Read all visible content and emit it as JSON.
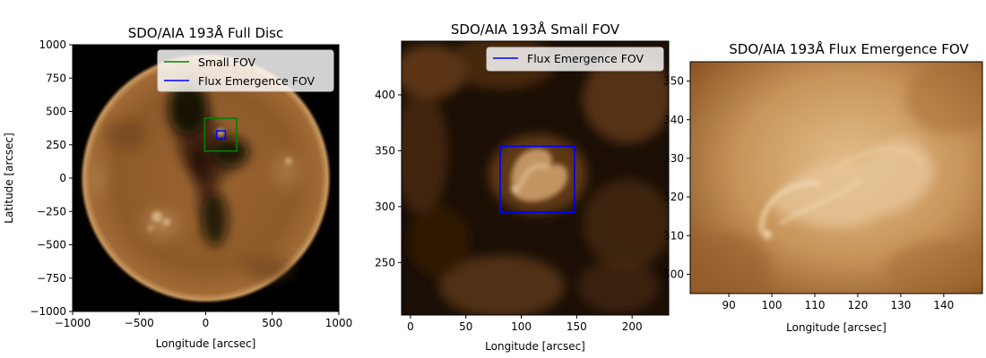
{
  "colors": {
    "small_fov": "#008000",
    "flux_fov": "#0000ff",
    "background": "#000000",
    "colormap": "sdoaia193"
  },
  "chart_data": [
    {
      "type": "heatmap",
      "id": "full",
      "title": "SDO/AIA 193Å Full Disc",
      "xlabel": "Longitude [arcsec]",
      "ylabel": "Latitude [arcsec]",
      "xlim": [
        -1000,
        1000
      ],
      "ylim": [
        -1000,
        1000
      ],
      "xticks": [
        -1000,
        -500,
        0,
        500,
        1000
      ],
      "xtick_labels": [
        "−1000",
        "−500",
        "0",
        "500",
        "1000"
      ],
      "yticks": [
        -1000,
        -750,
        -500,
        -250,
        0,
        250,
        500,
        750,
        1000
      ],
      "ytick_labels": [
        "−1000",
        "−750",
        "−500",
        "−250",
        "0",
        "250",
        "500",
        "750",
        "1000"
      ],
      "image": "solar disc, colormap sdoaia193",
      "overlays": [
        {
          "name": "Small FOV",
          "color": "#008000",
          "x": [
            -8,
            233
          ],
          "y": [
            203,
            448
          ]
        },
        {
          "name": "Flux Emergence FOV",
          "color": "#0000ff",
          "x": [
            81,
            148
          ],
          "y": [
            295,
            354
          ]
        }
      ],
      "legend": {
        "loc": "upper right",
        "entries": [
          "Small FOV",
          "Flux Emergence FOV"
        ]
      }
    },
    {
      "type": "heatmap",
      "id": "small",
      "title": "SDO/AIA 193Å Small FOV",
      "xlabel": "Longitude [arcsec]",
      "ylabel": "",
      "xlim": [
        -8,
        233
      ],
      "ylim": [
        203,
        448
      ],
      "xticks": [
        0,
        50,
        100,
        150,
        200
      ],
      "xtick_labels": [
        "0",
        "50",
        "100",
        "150",
        "200"
      ],
      "yticks": [
        250,
        300,
        350,
        400
      ],
      "ytick_labels": [
        "250",
        "300",
        "350",
        "400"
      ],
      "image": "cutout, colormap sdoaia193",
      "overlays": [
        {
          "name": "Flux Emergence FOV",
          "color": "#0000ff",
          "x": [
            81,
            148
          ],
          "y": [
            295,
            354
          ]
        }
      ],
      "legend": {
        "loc": "upper right",
        "entries": [
          "Flux Emergence FOV"
        ]
      }
    },
    {
      "type": "heatmap",
      "id": "flux",
      "title": "SDO/AIA 193Å Flux Emergence FOV",
      "xlabel": "Longitude [arcsec]",
      "ylabel": "",
      "xlim": [
        81,
        149
      ],
      "ylim": [
        295,
        355
      ],
      "xticks": [
        90,
        100,
        110,
        120,
        130,
        140
      ],
      "xtick_labels": [
        "90",
        "100",
        "110",
        "120",
        "130",
        "140"
      ],
      "yticks": [
        300,
        310,
        320,
        330,
        340,
        350
      ],
      "ytick_labels": [
        "300",
        "310",
        "320",
        "330",
        "340",
        "350"
      ],
      "image": "cutout, colormap sdoaia193",
      "overlays": [],
      "legend": null
    }
  ]
}
